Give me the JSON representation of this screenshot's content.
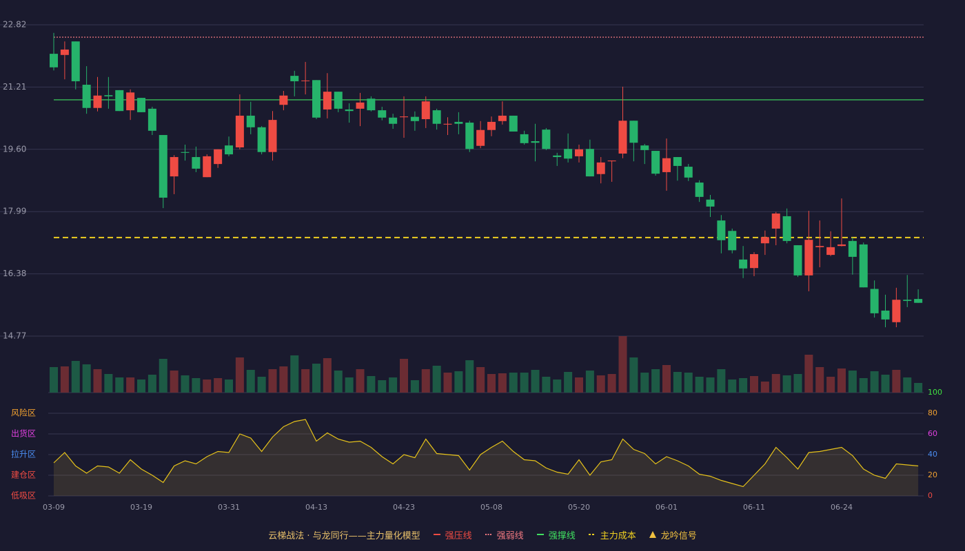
{
  "chart_data": {
    "type": "candlestick",
    "categories": [
      "03-09",
      null,
      null,
      null,
      null,
      null,
      null,
      null,
      "03-19",
      null,
      null,
      null,
      null,
      null,
      null,
      null,
      "03-31",
      null,
      null,
      null,
      null,
      null,
      null,
      null,
      "04-13",
      null,
      null,
      null,
      null,
      null,
      null,
      null,
      "04-23",
      null,
      null,
      null,
      null,
      null,
      null,
      null,
      "05-08",
      null,
      null,
      null,
      null,
      null,
      null,
      null,
      "05-20",
      null,
      null,
      null,
      null,
      null,
      null,
      null,
      "06-01",
      null,
      null,
      null,
      null,
      null,
      null,
      null,
      "06-11",
      null,
      null,
      null,
      null,
      null,
      null,
      null,
      "06-24",
      null,
      null,
      null,
      null,
      null,
      null,
      null
    ],
    "open": [
      22.07,
      22.04,
      22.39,
      21.27,
      20.67,
      21.0,
      21.13,
      20.61,
      20.93,
      20.65,
      19.97,
      18.9,
      19.53,
      19.4,
      18.88,
      19.22,
      19.7,
      19.65,
      20.47,
      20.17,
      19.53,
      20.75,
      21.5,
      21.37,
      21.39,
      20.63,
      21.09,
      20.63,
      20.65,
      20.91,
      20.61,
      20.42,
      20.43,
      20.44,
      20.38,
      20.61,
      20.24,
      20.31,
      20.29,
      19.69,
      20.1,
      20.33,
      20.47,
      19.99,
      19.81,
      20.11,
      19.44,
      19.61,
      19.42,
      19.61,
      18.96,
      19.29,
      19.49,
      20.34,
      19.7,
      19.56,
      19.01,
      19.4,
      19.15,
      18.74,
      18.3,
      17.76,
      17.49,
      16.75,
      16.53,
      17.17,
      17.55,
      17.87,
      17.12,
      16.34,
      17.07,
      16.87,
      17.1,
      17.23,
      17.14,
      15.99,
      15.43,
      15.13,
      15.71,
      15.73
    ],
    "high": [
      22.61,
      22.39,
      22.39,
      21.75,
      21.47,
      21.47,
      21.13,
      21.15,
      20.93,
      20.7,
      19.97,
      19.45,
      19.72,
      19.67,
      19.47,
      19.6,
      19.93,
      21.02,
      20.83,
      20.2,
      20.59,
      21.11,
      21.63,
      21.86,
      21.39,
      21.57,
      21.09,
      20.79,
      21.06,
      20.97,
      20.7,
      20.52,
      20.97,
      20.58,
      20.97,
      20.65,
      20.43,
      20.56,
      20.34,
      20.33,
      20.45,
      20.84,
      20.47,
      20.08,
      20.26,
      20.15,
      19.51,
      20.01,
      19.72,
      19.85,
      19.4,
      19.31,
      21.22,
      20.34,
      19.74,
      19.56,
      19.88,
      19.4,
      19.22,
      18.8,
      18.42,
      17.9,
      17.55,
      17.1,
      16.94,
      17.5,
      17.98,
      18.07,
      17.12,
      18.01,
      17.76,
      17.48,
      18.33,
      17.32,
      17.19,
      16.21,
      15.84,
      16.02,
      16.35,
      15.98
    ],
    "low": [
      21.64,
      21.41,
      21.15,
      20.52,
      20.58,
      20.65,
      20.59,
      20.36,
      20.56,
      19.97,
      18.08,
      18.44,
      19.31,
      19.01,
      18.88,
      19.12,
      19.42,
      19.6,
      19.99,
      19.47,
      19.31,
      20.61,
      20.97,
      21.02,
      20.38,
      20.4,
      20.56,
      20.29,
      20.2,
      20.58,
      20.35,
      20.13,
      19.9,
      20.08,
      20.15,
      20.11,
      19.97,
      19.99,
      19.53,
      19.63,
      19.94,
      20.24,
      20.06,
      19.72,
      19.29,
      19.58,
      19.17,
      19.26,
      19.26,
      18.9,
      18.72,
      18.76,
      19.37,
      19.29,
      19.22,
      18.92,
      18.53,
      18.79,
      18.78,
      18.24,
      17.85,
      16.91,
      16.91,
      16.27,
      16.32,
      16.87,
      17.12,
      17.17,
      16.3,
      15.93,
      16.55,
      16.84,
      17.09,
      16.36,
      16.03,
      15.25,
      15.0,
      15.0,
      15.52,
      15.63
    ],
    "close": [
      21.72,
      22.18,
      21.36,
      20.67,
      20.99,
      20.97,
      20.59,
      21.07,
      20.56,
      20.08,
      18.35,
      19.4,
      19.51,
      19.1,
      19.42,
      19.6,
      19.47,
      20.47,
      20.17,
      19.53,
      20.36,
      20.99,
      21.36,
      21.38,
      20.42,
      21.09,
      20.65,
      20.59,
      20.81,
      20.61,
      20.42,
      20.26,
      20.45,
      20.33,
      20.84,
      20.26,
      20.26,
      20.26,
      19.61,
      20.1,
      20.31,
      20.47,
      20.06,
      19.76,
      19.77,
      19.61,
      19.4,
      19.36,
      19.6,
      18.9,
      19.26,
      19.31,
      20.34,
      19.77,
      19.58,
      18.97,
      19.37,
      19.17,
      18.87,
      18.37,
      18.12,
      17.25,
      16.99,
      16.52,
      16.89,
      17.33,
      17.94,
      17.23,
      16.34,
      17.26,
      17.1,
      17.07,
      17.14,
      16.82,
      16.03,
      15.36,
      15.2,
      15.71,
      15.68,
      15.63
    ],
    "volume": [
      37,
      38,
      46,
      41,
      34,
      27,
      22,
      22,
      19,
      26,
      49,
      32,
      25,
      21,
      19,
      21,
      19,
      51,
      33,
      23,
      34,
      38,
      54,
      34,
      42,
      50,
      32,
      22,
      34,
      24,
      18,
      22,
      49,
      18,
      34,
      39,
      29,
      31,
      47,
      37,
      27,
      28,
      29,
      29,
      33,
      23,
      19,
      30,
      22,
      32,
      25,
      27,
      82,
      51,
      29,
      34,
      40,
      30,
      29,
      23,
      22,
      34,
      19,
      21,
      24,
      16,
      27,
      25,
      27,
      55,
      37,
      23,
      35,
      32,
      21,
      31,
      26,
      33,
      22,
      14
    ],
    "indicator": [
      32,
      42,
      29,
      22,
      29,
      28,
      22,
      35,
      26,
      20,
      13,
      29,
      34,
      31,
      38,
      43,
      42,
      60,
      56,
      43,
      57,
      67,
      72,
      74,
      53,
      61,
      55,
      52,
      53,
      47,
      38,
      31,
      40,
      37,
      55,
      41,
      40,
      39,
      25,
      40,
      47,
      53,
      43,
      35,
      34,
      27,
      23,
      21,
      35,
      20,
      33,
      35,
      55,
      45,
      41,
      31,
      38,
      34,
      29,
      21,
      19,
      15,
      12,
      9,
      20,
      31,
      47,
      37,
      26,
      42,
      43,
      45,
      47,
      39,
      26,
      20,
      17,
      31,
      30,
      29
    ],
    "up_color": "#ef4b43",
    "down_color": "#26b36b",
    "volume_up_color": "#6b2c33",
    "volume_down_color": "#1d5a45",
    "indicator_color": "#e6c21a",
    "ylim": [
      14.77,
      22.82
    ],
    "yticks": [
      14.77,
      16.38,
      17.99,
      {
        "value": 19.6,
        "label": "19.60"
      },
      21.21,
      22.82
    ],
    "indicator_ylim": [
      0,
      100
    ],
    "indicator_yticks": [
      {
        "value": 0,
        "color": "#ef4b43"
      },
      {
        "value": 20,
        "color": "#f0a030"
      },
      {
        "value": 40,
        "color": "#4a8cf0"
      },
      {
        "value": 60,
        "color": "#e040e0"
      },
      {
        "value": 80,
        "color": "#f0a030"
      },
      {
        "value": 100,
        "color": "#40e040"
      }
    ],
    "zones": [
      {
        "label": "风险区",
        "value": 80,
        "color": "#f0a030"
      },
      {
        "label": "出货区",
        "value": 60,
        "color": "#e040e0"
      },
      {
        "label": "拉升区",
        "value": 40,
        "color": "#4a8cf0"
      },
      {
        "label": "建仓区",
        "value": 20,
        "color": "#ef4b43"
      },
      {
        "label": "低吸区",
        "value": 0,
        "color": "#ef4b43"
      }
    ],
    "legend_title": "云梯战法 · 与龙同行——主力量化模型",
    "legend": [
      {
        "name": "强压线",
        "color": "#ef4b43",
        "style": "solid"
      },
      {
        "name": "强弱线",
        "color": "#f07880",
        "style": "dotted",
        "value": 22.5
      },
      {
        "name": "强撑线",
        "color": "#40e060",
        "style": "solid",
        "value": 20.88
      },
      {
        "name": "主力成本",
        "color": "#f0d020",
        "style": "dashed",
        "value": 17.32
      },
      {
        "name": "龙吟信号",
        "color": "#f0c040",
        "style": "triangle"
      }
    ],
    "grid": true
  }
}
